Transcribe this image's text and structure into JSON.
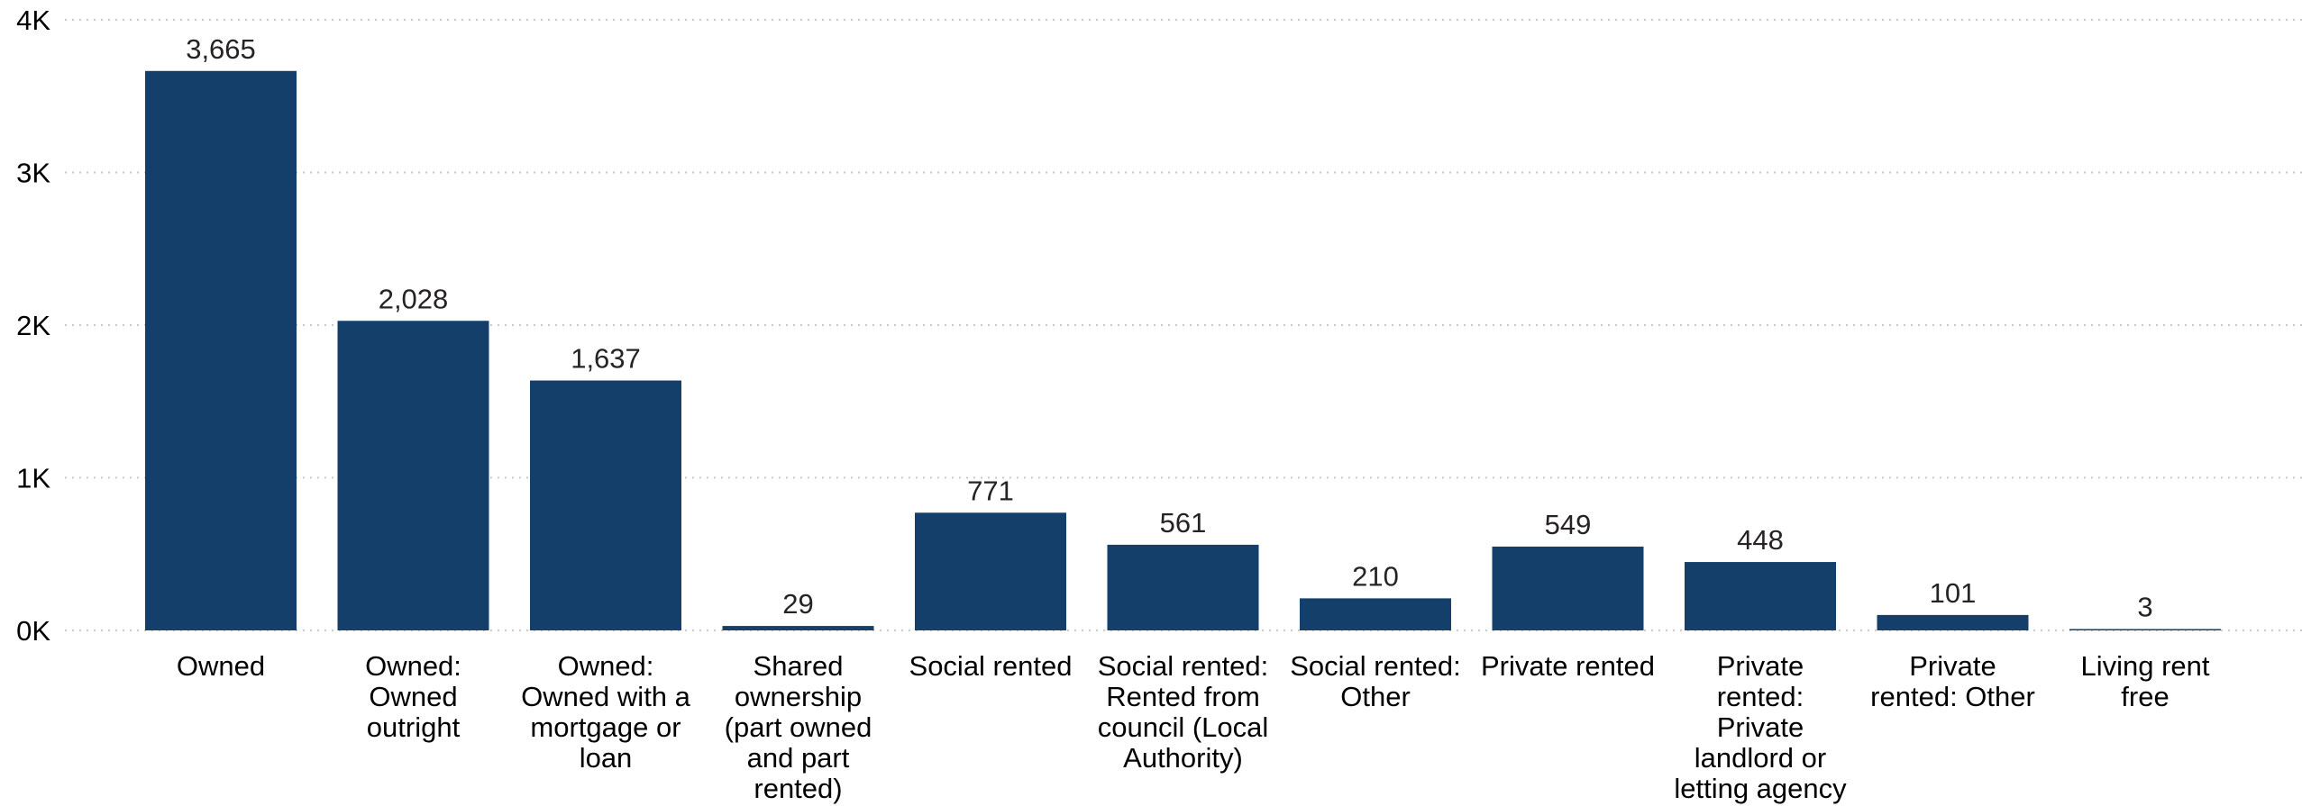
{
  "chart_data": {
    "type": "bar",
    "categories": [
      "Owned",
      "Owned: Owned outright",
      "Owned: Owned with a mortgage or loan",
      "Shared ownership (part owned and part rented)",
      "Social rented",
      "Social rented: Rented from council (Local Authority)",
      "Social rented: Other",
      "Private rented",
      "Private rented: Private landlord or letting agency",
      "Private rented: Other",
      "Living rent free"
    ],
    "category_lines": [
      [
        "Owned"
      ],
      [
        "Owned:",
        "Owned",
        "outright"
      ],
      [
        "Owned:",
        "Owned with a",
        "mortgage or",
        "loan"
      ],
      [
        "Shared",
        "ownership",
        "(part owned",
        "and part",
        "rented)"
      ],
      [
        "Social rented"
      ],
      [
        "Social rented:",
        "Rented from",
        "council (Local",
        "Authority)"
      ],
      [
        "Social rented:",
        "Other"
      ],
      [
        "Private rented"
      ],
      [
        "Private",
        "rented:",
        "Private",
        "landlord or",
        "letting agency"
      ],
      [
        "Private",
        "rented: Other"
      ],
      [
        "Living rent",
        "free"
      ]
    ],
    "values": [
      3665,
      2028,
      1637,
      29,
      771,
      561,
      210,
      549,
      448,
      101,
      3
    ],
    "data_labels": [
      "3,665",
      "2,028",
      "1,637",
      "29",
      "771",
      "561",
      "210",
      "549",
      "448",
      "101",
      "3"
    ],
    "ylim": [
      0,
      4000
    ],
    "yticks": [
      0,
      1000,
      2000,
      3000,
      4000
    ],
    "ytick_labels": [
      "0K",
      "1K",
      "2K",
      "3K",
      "4K"
    ],
    "title": "",
    "xlabel": "",
    "ylabel": "",
    "grid": true,
    "bar_color": "#133F6A"
  }
}
